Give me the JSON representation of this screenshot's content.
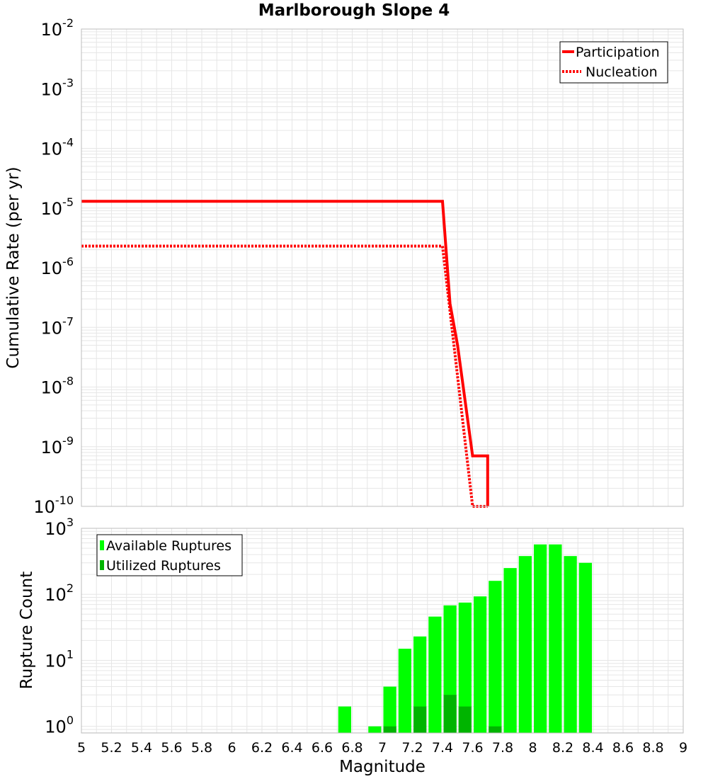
{
  "chart_data": [
    {
      "type": "line",
      "title": "Marlborough Slope 4",
      "ylabel": "Cumulative Rate (per yr)",
      "xlabel": "",
      "x_range": [
        5,
        9
      ],
      "y_scale": "log",
      "ylim_exponents": [
        -10,
        -2
      ],
      "y_tick_base": "10",
      "y_tick_exponents": [
        "-10",
        "-9",
        "-8",
        "-7",
        "-6",
        "-5",
        "-4",
        "-3",
        "-2"
      ],
      "grid": true,
      "legend": "top-right",
      "series": [
        {
          "name": "Participation",
          "style": "solid",
          "color": "#ff0000",
          "x": [
            5.0,
            7.4,
            7.45,
            7.5,
            7.6,
            7.7,
            7.7
          ],
          "y": [
            1.3e-05,
            1.3e-05,
            2.5e-07,
            5e-08,
            7e-10,
            7e-10,
            1e-10
          ]
        },
        {
          "name": "Nucleation",
          "style": "dotted",
          "color": "#ff0000",
          "x": [
            5.0,
            7.4,
            7.6,
            7.7,
            7.7
          ],
          "y": [
            2.3e-06,
            2.3e-06,
            1e-10,
            1e-10,
            1e-10
          ]
        }
      ]
    },
    {
      "type": "bar",
      "title": "",
      "ylabel": "Rupture Count",
      "xlabel": "Magnitude",
      "x_range": [
        5,
        9
      ],
      "x_ticks": [
        "5",
        "5.2",
        "5.4",
        "5.6",
        "5.8",
        "6",
        "6.2",
        "6.4",
        "6.6",
        "6.8",
        "7",
        "7.2",
        "7.4",
        "7.6",
        "7.8",
        "8",
        "8.2",
        "8.4",
        "8.6",
        "8.8",
        "9"
      ],
      "y_scale": "log",
      "ylim_exponents": [
        -0.1,
        3
      ],
      "y_tick_base": "10",
      "y_tick_exponents": [
        "0",
        "1",
        "2",
        "3"
      ],
      "grid": true,
      "legend": "top-left",
      "bin_width": 0.1,
      "series": [
        {
          "name": "Available Ruptures",
          "color": "#00ff00",
          "x": [
            6.7,
            6.9,
            7.0,
            7.1,
            7.2,
            7.3,
            7.4,
            7.5,
            7.6,
            7.7,
            7.8,
            7.9,
            8.0,
            8.1,
            8.2,
            8.3
          ],
          "values": [
            2,
            1,
            4,
            15,
            23,
            46,
            68,
            75,
            93,
            160,
            250,
            380,
            570,
            570,
            380,
            300
          ]
        },
        {
          "name": "Utilized Ruptures",
          "color": "#00b400",
          "x": [
            7.0,
            7.2,
            7.4,
            7.5,
            7.7
          ],
          "values": [
            1,
            2,
            3,
            2,
            1
          ]
        }
      ]
    }
  ]
}
